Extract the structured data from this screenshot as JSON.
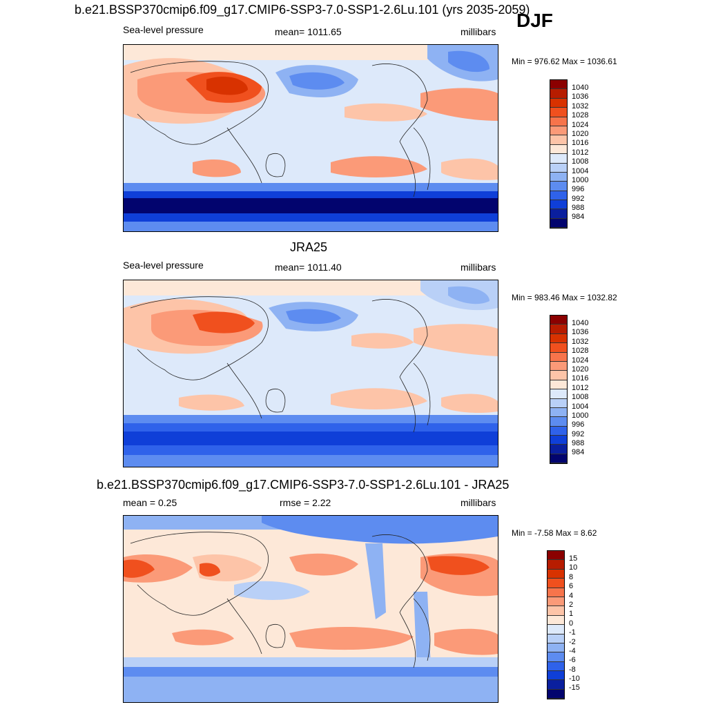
{
  "header": {
    "main_title": "b.e21.BSSP370cmip6.f09_g17.CMIP6-SSP3-7.0-SSP1-2.6Lu.101 (yrs 2035-2059)",
    "season": "DJF"
  },
  "panels": [
    {
      "title": "",
      "left_label": "Sea-level pressure",
      "center_label": "mean= 1011.65",
      "right_label": "millibars",
      "minmax": "Min = 976.62 Max = 1036.61",
      "colorbar_labels": [
        "1040",
        "1036",
        "1032",
        "1028",
        "1024",
        "1020",
        "1016",
        "1012",
        "1008",
        "1004",
        "1000",
        "996",
        "992",
        "988",
        "984"
      ]
    },
    {
      "title": "JRA25",
      "left_label": "Sea-level pressure",
      "center_label": "mean= 1011.40",
      "right_label": "millibars",
      "minmax": "Min = 983.46 Max = 1032.82",
      "colorbar_labels": [
        "1040",
        "1036",
        "1032",
        "1028",
        "1024",
        "1020",
        "1016",
        "1012",
        "1008",
        "1004",
        "1000",
        "996",
        "992",
        "988",
        "984"
      ]
    },
    {
      "title": "b.e21.BSSP370cmip6.f09_g17.CMIP6-SSP3-7.0-SSP1-2.6Lu.101 - JRA25",
      "left_label": "mean =   0.25",
      "center_label": "rmse =   2.22",
      "right_label": "millibars",
      "minmax": "Min =  -7.58 Max =   8.62",
      "colorbar_labels": [
        "15",
        "10",
        "8",
        "6",
        "4",
        "2",
        "1",
        "0",
        "-1",
        "-2",
        "-4",
        "-6",
        "-8",
        "-10",
        "-15"
      ]
    }
  ],
  "colors": {
    "scale": [
      "#8b0000",
      "#b71c00",
      "#d83200",
      "#f0501e",
      "#f7744b",
      "#fb9a78",
      "#fdc4a8",
      "#fde8d8",
      "#dde9fa",
      "#b9d0f7",
      "#8eb2f3",
      "#5d8cf0",
      "#2f62ea",
      "#0f3fd8",
      "#0a1f9e",
      "#02046e"
    ]
  }
}
